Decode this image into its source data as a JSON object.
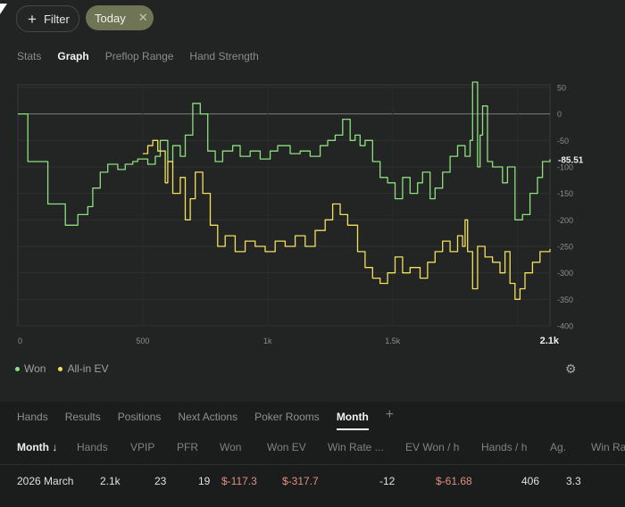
{
  "filters": {
    "add_label": "Filter",
    "active_chip": "Today"
  },
  "view_tabs": [
    {
      "label": "Stats",
      "active": false
    },
    {
      "label": "Graph",
      "active": true
    },
    {
      "label": "Preflop Range",
      "active": false
    },
    {
      "label": "Hand Strength",
      "active": false
    }
  ],
  "chart_data": {
    "type": "line",
    "xlim": [
      0,
      2100
    ],
    "ylim": [
      -400,
      55
    ],
    "x_ticks": [
      "0",
      "500",
      "1k",
      "1.5k"
    ],
    "x_end_label": "2.1k",
    "y_ticks": [
      "50",
      "0",
      "-50",
      "-100",
      "-150",
      "-200",
      "-250",
      "-300",
      "-350",
      "-400"
    ],
    "y_tick_values": [
      50,
      0,
      -50,
      -100,
      -150,
      -200,
      -250,
      -300,
      -350,
      -400
    ],
    "current_value_label": "-85.51",
    "series": [
      {
        "name": "Won",
        "color": "#8ee07e",
        "points": [
          [
            0,
            0
          ],
          [
            40,
            -90
          ],
          [
            120,
            -170
          ],
          [
            190,
            -210
          ],
          [
            240,
            -190
          ],
          [
            280,
            -175
          ],
          [
            300,
            -140
          ],
          [
            330,
            -110
          ],
          [
            360,
            -95
          ],
          [
            400,
            -105
          ],
          [
            430,
            -95
          ],
          [
            460,
            -90
          ],
          [
            480,
            -85
          ],
          [
            520,
            -95
          ],
          [
            550,
            -80
          ],
          [
            570,
            -50
          ],
          [
            600,
            -90
          ],
          [
            620,
            -60
          ],
          [
            650,
            -80
          ],
          [
            670,
            -40
          ],
          [
            700,
            20
          ],
          [
            730,
            0
          ],
          [
            760,
            -70
          ],
          [
            790,
            -90
          ],
          [
            820,
            -70
          ],
          [
            860,
            -60
          ],
          [
            890,
            -80
          ],
          [
            930,
            -70
          ],
          [
            970,
            -85
          ],
          [
            1010,
            -70
          ],
          [
            1040,
            -60
          ],
          [
            1090,
            -75
          ],
          [
            1130,
            -70
          ],
          [
            1170,
            -80
          ],
          [
            1210,
            -60
          ],
          [
            1240,
            -50
          ],
          [
            1270,
            -40
          ],
          [
            1300,
            -10
          ],
          [
            1330,
            -50
          ],
          [
            1350,
            -40
          ],
          [
            1370,
            -60
          ],
          [
            1390,
            -50
          ],
          [
            1420,
            -90
          ],
          [
            1450,
            -120
          ],
          [
            1480,
            -130
          ],
          [
            1510,
            -160
          ],
          [
            1540,
            -120
          ],
          [
            1570,
            -150
          ],
          [
            1600,
            -130
          ],
          [
            1620,
            -110
          ],
          [
            1650,
            -160
          ],
          [
            1670,
            -140
          ],
          [
            1700,
            -110
          ],
          [
            1730,
            -80
          ],
          [
            1760,
            -60
          ],
          [
            1790,
            -80
          ],
          [
            1810,
            -50
          ],
          [
            1820,
            60
          ],
          [
            1840,
            -100
          ],
          [
            1850,
            -40
          ],
          [
            1860,
            15
          ],
          [
            1880,
            -90
          ],
          [
            1900,
            -100
          ],
          [
            1940,
            -130
          ],
          [
            1960,
            -100
          ],
          [
            1990,
            -200
          ],
          [
            2020,
            -190
          ],
          [
            2050,
            -150
          ],
          [
            2080,
            -120
          ],
          [
            2100,
            -90
          ],
          [
            2130,
            -85.51
          ]
        ]
      },
      {
        "name": "All-in EV",
        "color": "#f4e05d",
        "points": [
          [
            500,
            -75
          ],
          [
            520,
            -60
          ],
          [
            540,
            -50
          ],
          [
            560,
            -70
          ],
          [
            590,
            -130
          ],
          [
            600,
            -90
          ],
          [
            620,
            -150
          ],
          [
            650,
            -120
          ],
          [
            670,
            -200
          ],
          [
            690,
            -160
          ],
          [
            710,
            -110
          ],
          [
            740,
            -150
          ],
          [
            770,
            -210
          ],
          [
            800,
            -250
          ],
          [
            830,
            -230
          ],
          [
            870,
            -260
          ],
          [
            910,
            -240
          ],
          [
            950,
            -250
          ],
          [
            990,
            -260
          ],
          [
            1030,
            -240
          ],
          [
            1070,
            -250
          ],
          [
            1110,
            -230
          ],
          [
            1150,
            -250
          ],
          [
            1190,
            -220
          ],
          [
            1230,
            -200
          ],
          [
            1260,
            -170
          ],
          [
            1290,
            -190
          ],
          [
            1320,
            -210
          ],
          [
            1360,
            -260
          ],
          [
            1390,
            -290
          ],
          [
            1420,
            -310
          ],
          [
            1450,
            -320
          ],
          [
            1480,
            -300
          ],
          [
            1510,
            -270
          ],
          [
            1540,
            -300
          ],
          [
            1570,
            -290
          ],
          [
            1610,
            -310
          ],
          [
            1640,
            -280
          ],
          [
            1670,
            -260
          ],
          [
            1700,
            -240
          ],
          [
            1730,
            -260
          ],
          [
            1760,
            -230
          ],
          [
            1780,
            -250
          ],
          [
            1790,
            -200
          ],
          [
            1800,
            -260
          ],
          [
            1820,
            -330
          ],
          [
            1840,
            -250
          ],
          [
            1870,
            -270
          ],
          [
            1900,
            -280
          ],
          [
            1930,
            -300
          ],
          [
            1950,
            -260
          ],
          [
            1970,
            -320
          ],
          [
            1990,
            -350
          ],
          [
            2010,
            -330
          ],
          [
            2030,
            -300
          ],
          [
            2060,
            -280
          ],
          [
            2090,
            -260
          ],
          [
            2130,
            -255
          ]
        ]
      }
    ]
  },
  "legend": [
    {
      "label": "Won",
      "color": "#8ee07e"
    },
    {
      "label": "All-in EV",
      "color": "#f4e05d"
    }
  ],
  "bottom_tabs": [
    {
      "label": "Hands",
      "active": false
    },
    {
      "label": "Results",
      "active": false
    },
    {
      "label": "Positions",
      "active": false
    },
    {
      "label": "Next Actions",
      "active": false
    },
    {
      "label": "Poker Rooms",
      "active": false
    },
    {
      "label": "Month",
      "active": true
    }
  ],
  "table": {
    "headers": {
      "month": "Month ↓",
      "hands": "Hands",
      "vpip": "VPIP",
      "pfr": "PFR",
      "won": "Won",
      "won_ev": "Won EV",
      "win_rate": "Win Rate ...",
      "ev_won_h": "EV Won / h",
      "hands_h": "Hands / h",
      "ag": "Ag.",
      "win_ra": "Win Ra"
    },
    "row": {
      "month": "2026 March",
      "hands": "2.1k",
      "vpip": "23",
      "pfr": "19",
      "won": "$-117.3",
      "won_ev": "$-317.7",
      "win_rate": "-12",
      "ev_won_h": "$-61.68",
      "hands_h": "406",
      "ag": "3.3"
    }
  }
}
